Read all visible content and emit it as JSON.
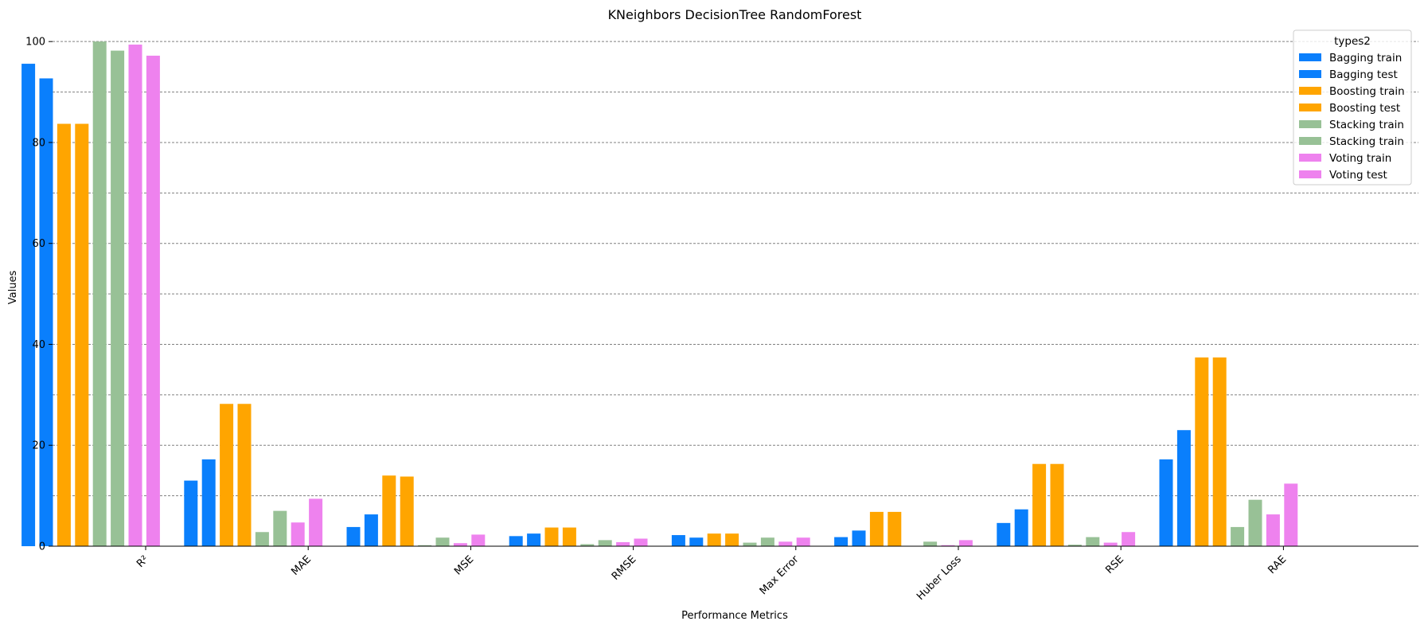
{
  "chart_data": {
    "type": "bar",
    "title": "KNeighbors DecisionTree RandomForest",
    "xlabel": "Performance Metrics",
    "ylabel": "Values",
    "ylim": [
      0,
      103.5
    ],
    "yticks": [
      0,
      20,
      40,
      60,
      80,
      100
    ],
    "grid": "horizontal dashed",
    "legend_title": "types2",
    "legend_position": "top-right",
    "categories": [
      "R²",
      "MAE",
      "MSE",
      "RMSE",
      "Max Error",
      "Huber Loss",
      "RSE",
      "RAE"
    ],
    "series": [
      {
        "name": "Bagging train",
        "color": "#0a7ffc",
        "values": [
          95.6,
          13.0,
          3.8,
          2.0,
          2.2,
          1.8,
          4.6,
          17.2
        ]
      },
      {
        "name": "Bagging test",
        "color": "#0a7ffc",
        "values": [
          92.7,
          17.2,
          6.3,
          2.5,
          1.7,
          3.1,
          7.3,
          23.0
        ]
      },
      {
        "name": "Boosting train",
        "color": "#ffa500",
        "values": [
          83.7,
          28.2,
          14.0,
          3.7,
          2.5,
          6.8,
          16.3,
          37.4
        ]
      },
      {
        "name": "Boosting test",
        "color": "#ffa500",
        "values": [
          83.7,
          28.2,
          13.8,
          3.7,
          2.5,
          6.8,
          16.3,
          37.4
        ]
      },
      {
        "name": "Stacking train",
        "color": "#98c196",
        "values": [
          100.0,
          2.8,
          0.2,
          0.4,
          0.7,
          0.0,
          0.3,
          3.8
        ]
      },
      {
        "name": "Stacking train",
        "color": "#98c196",
        "values": [
          98.2,
          7.0,
          1.7,
          1.2,
          1.7,
          0.9,
          1.8,
          9.2
        ]
      },
      {
        "name": "Voting train",
        "color": "#ee82ee",
        "values": [
          99.4,
          4.7,
          0.6,
          0.8,
          0.9,
          0.2,
          0.7,
          6.3
        ]
      },
      {
        "name": "Voting test",
        "color": "#ee82ee",
        "values": [
          97.2,
          9.4,
          2.3,
          1.5,
          1.7,
          1.2,
          2.8,
          12.4
        ]
      }
    ]
  }
}
